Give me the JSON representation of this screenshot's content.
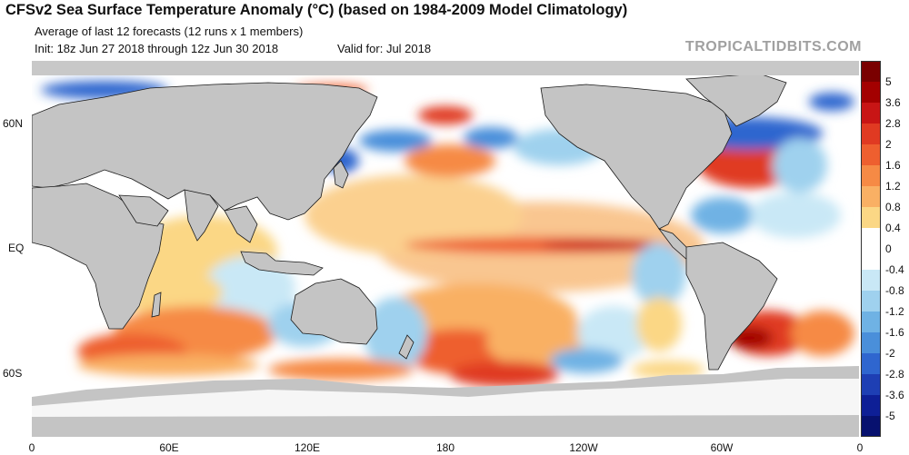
{
  "header": {
    "title": "CFSv2 Sea Surface Temperature Anomaly (°C) (based on 1984-2009 Model Climatology)",
    "subtitle": "Average of last 12 forecasts (12 runs x 1 members)",
    "init": "Init: 18z Jun 27 2018 through 12z Jun 30 2018",
    "valid": "Valid for: Jul 2018",
    "brand": "TROPICALTIDBITS.COM"
  },
  "axes": {
    "lat_labels": [
      "60N",
      "EQ",
      "60S"
    ],
    "lon_labels": [
      "0",
      "60E",
      "120E",
      "180",
      "120W",
      "60W",
      "0"
    ]
  },
  "colorbar": {
    "labels": [
      "5",
      "3.6",
      "2.8",
      "2",
      "1.6",
      "1.2",
      "0.8",
      "0.4",
      "0",
      "-0.4",
      "-0.8",
      "-1.2",
      "-1.6",
      "-2",
      "-2.8",
      "-3.6",
      "-5"
    ],
    "colors": [
      "#7a0000",
      "#a30000",
      "#c81515",
      "#e03a22",
      "#ee5f2f",
      "#f68a45",
      "#f9b064",
      "#fbd785",
      "#ffffff",
      "#ffffff",
      "#c9e8f6",
      "#9fd1ee",
      "#6fb2e4",
      "#4a8fda",
      "#2f66cf",
      "#1e3fb4",
      "#0e1f96",
      "#07116f"
    ]
  },
  "colors": {
    "land": "#c4c4c4",
    "land_border": "#1a1a1a",
    "ice": "#c8c8c8",
    "ocean_neutral": "#ffffff"
  }
}
